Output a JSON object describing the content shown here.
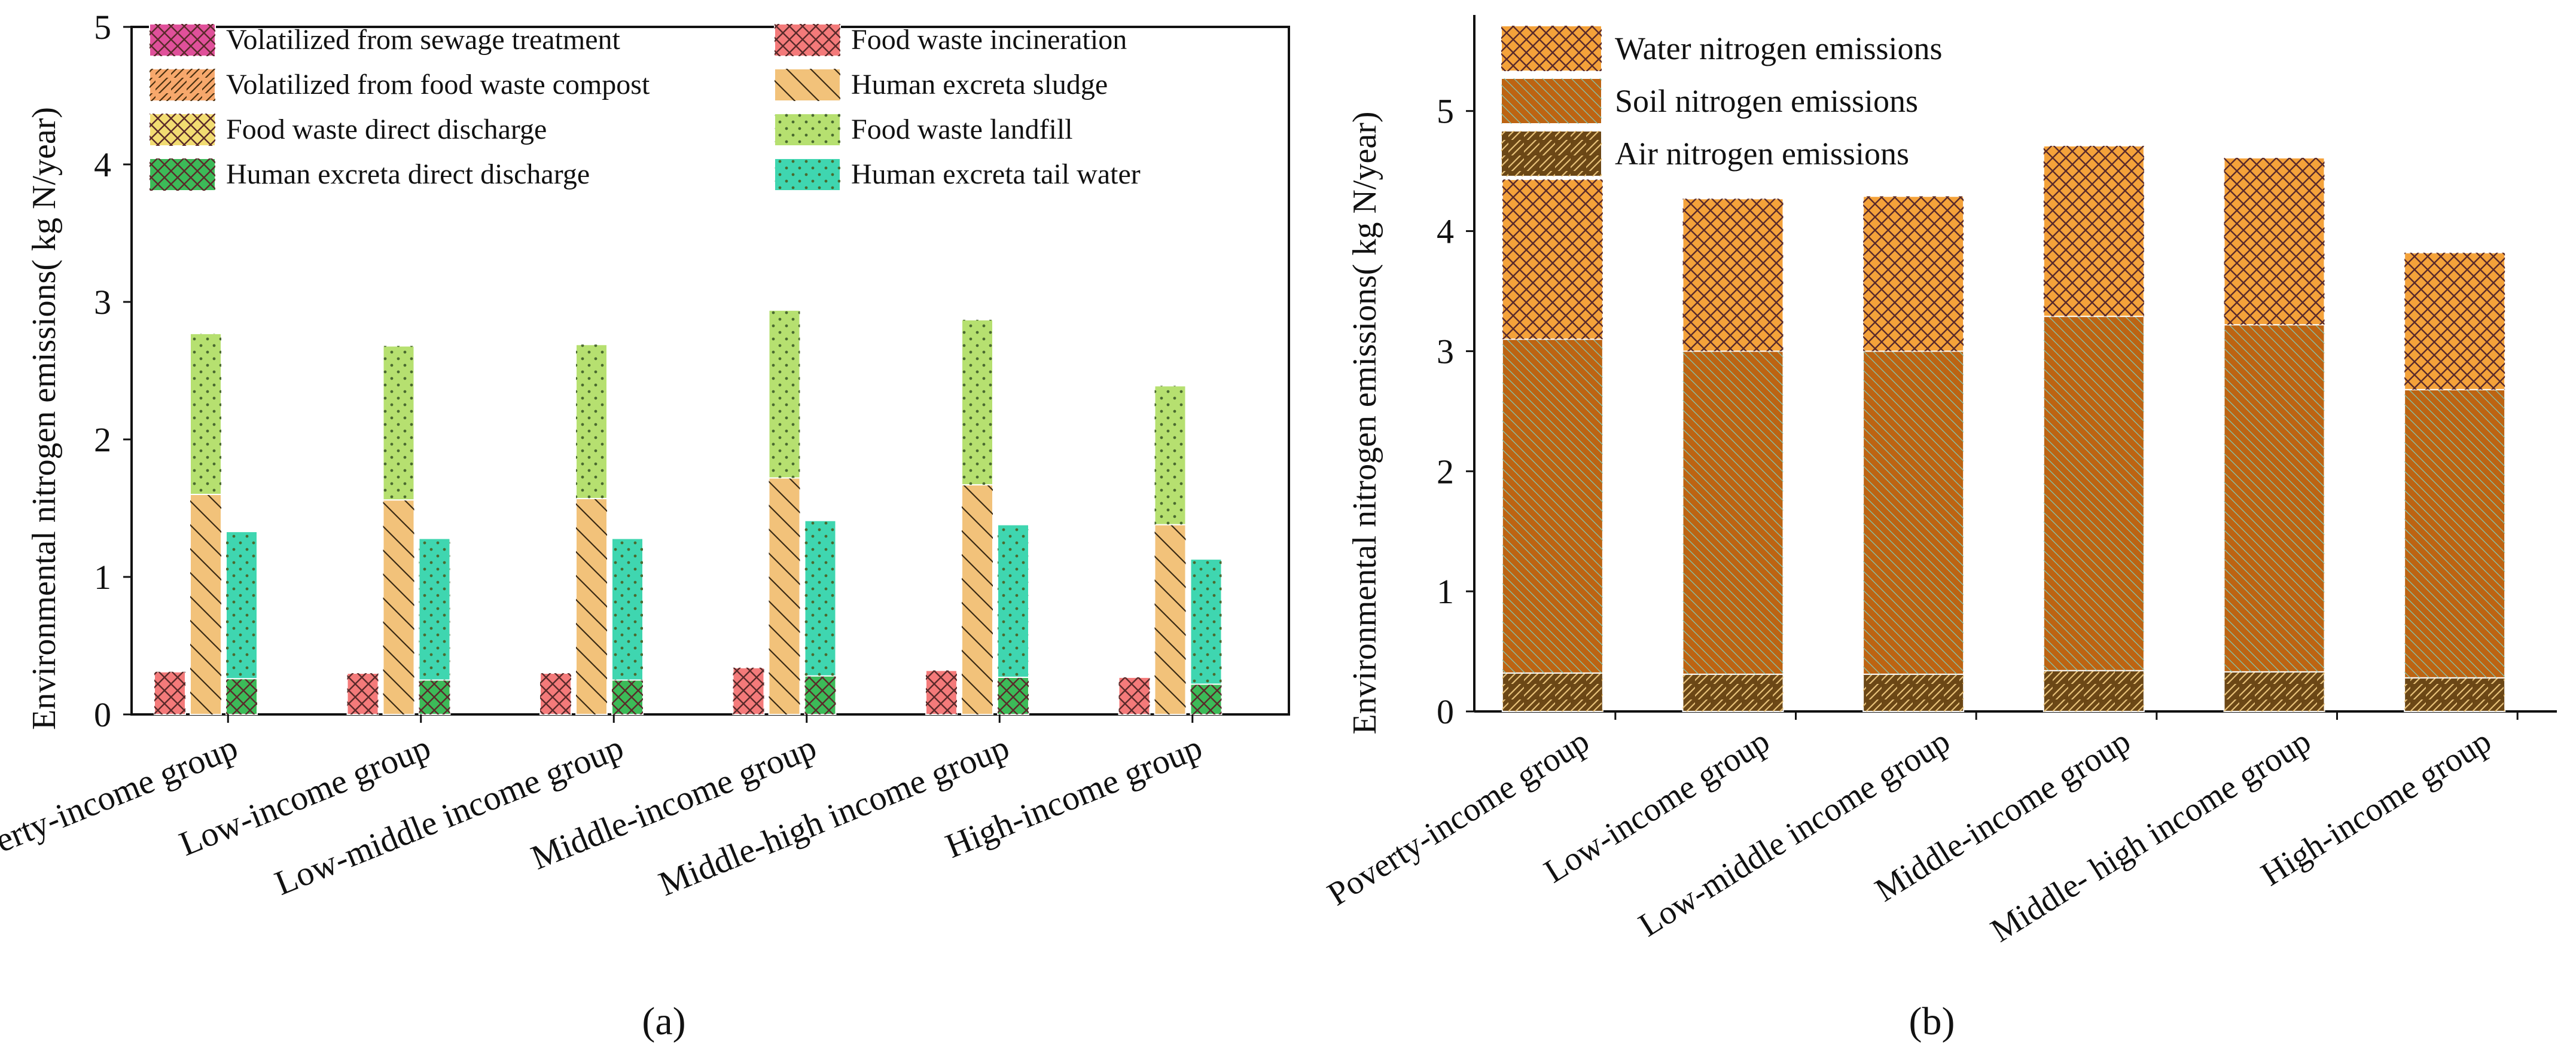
{
  "chart_data": [
    {
      "panel_label": "(a)",
      "type": "bar",
      "subtype": "grouped-stacked",
      "ylabel": "Environmental nitrogen emissions( kg N/year)",
      "ylim": [
        0,
        5
      ],
      "yticks": [
        "0",
        "1",
        "2",
        "3",
        "4",
        "5"
      ],
      "categories": [
        "Poverty-income group",
        "Low-income group",
        "Low-middle income group",
        "Middle-income group",
        "Middle-high income group",
        "High-income group"
      ],
      "legend_position": "top",
      "legend": [
        {
          "name": "Volatilized from sewage treatment",
          "color": "#e0509a",
          "pattern": "crosshatch"
        },
        {
          "name": "Food waste incineration",
          "color": "#f47a7a",
          "pattern": "crosshatch"
        },
        {
          "name": "Volatilized from food waste compost",
          "color": "#f7a86c",
          "pattern": "diagonal"
        },
        {
          "name": "Human excreta sludge",
          "color": "#f2c27a",
          "pattern": "backdiagonal"
        },
        {
          "name": "Food waste direct discharge",
          "color": "#f2dc72",
          "pattern": "crosshatch"
        },
        {
          "name": "Food waste landfill",
          "color": "#b6e070",
          "pattern": "dots"
        },
        {
          "name": "Human excreta direct discharge",
          "color": "#3cba58",
          "pattern": "crosshatch"
        },
        {
          "name": "Human excreta tail water",
          "color": "#3fd6b0",
          "pattern": "dots"
        }
      ],
      "bars": [
        {
          "name": "Food waste bar",
          "stacks": [
            {
              "series": "Food waste incineration",
              "values": [
                0.31,
                0.3,
                0.3,
                0.34,
                0.32,
                0.27
              ]
            }
          ]
        },
        {
          "name": "Sludge and landfill bar",
          "stacks": [
            {
              "series": "Human excreta sludge",
              "values": [
                1.6,
                1.56,
                1.57,
                1.72,
                1.67,
                1.38
              ]
            },
            {
              "series": "Food waste landfill",
              "values": [
                1.17,
                1.12,
                1.12,
                1.22,
                1.2,
                1.01
              ]
            }
          ]
        },
        {
          "name": "Excreta bar",
          "stacks": [
            {
              "series": "Human excreta direct discharge",
              "values": [
                0.26,
                0.25,
                0.25,
                0.28,
                0.27,
                0.22
              ]
            },
            {
              "series": "Human excreta tail water",
              "values": [
                1.07,
                1.03,
                1.03,
                1.13,
                1.11,
                0.91
              ]
            }
          ]
        }
      ]
    },
    {
      "panel_label": "(b)",
      "type": "bar",
      "subtype": "stacked",
      "ylabel": "Environmental nitrogen emissions( kg N/year)",
      "ylim": [
        0,
        5.8
      ],
      "yticks": [
        "0",
        "1",
        "2",
        "3",
        "4",
        "5"
      ],
      "categories": [
        "Poverty-income group",
        "Low-income group",
        "Low-middle income group",
        "Middle-income group",
        "Middle- high income group",
        "High-income group"
      ],
      "legend_position": "top-left",
      "series": [
        {
          "name": "Air nitrogen emissions",
          "color": "#6b4716",
          "pattern": "diagonal",
          "values": [
            0.32,
            0.31,
            0.31,
            0.34,
            0.33,
            0.28
          ]
        },
        {
          "name": "Soil nitrogen emissions",
          "color": "#bd6412",
          "pattern": "fine-diagonal",
          "values": [
            2.78,
            2.69,
            2.69,
            2.95,
            2.89,
            2.4
          ]
        },
        {
          "name": "Water nitrogen emissions",
          "color": "#f4a23a",
          "pattern": "crosshatch",
          "values": [
            1.33,
            1.27,
            1.29,
            1.42,
            1.39,
            1.14
          ]
        }
      ]
    }
  ]
}
